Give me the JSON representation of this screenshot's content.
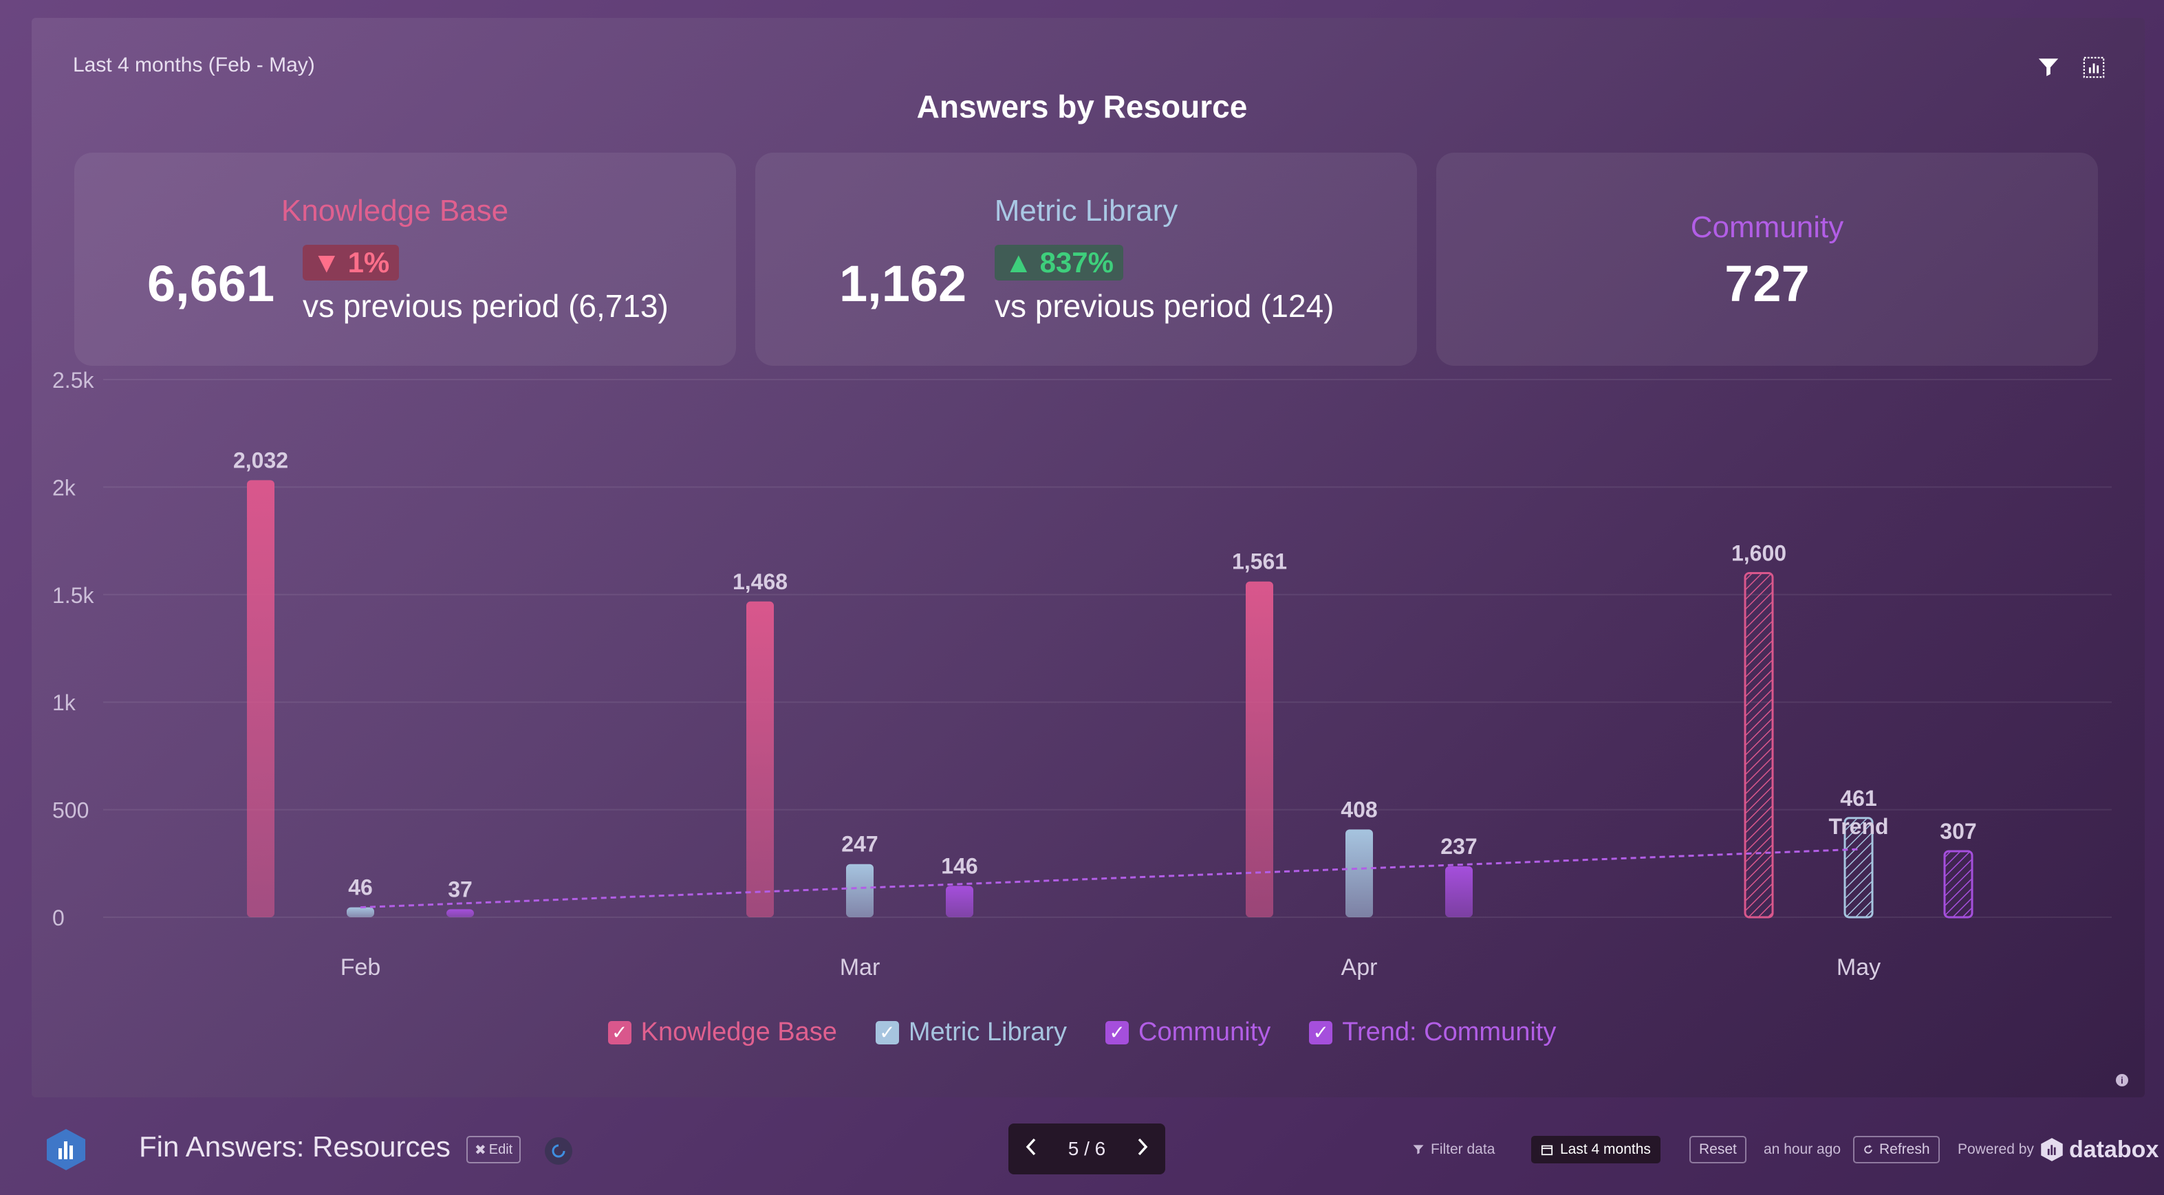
{
  "header": {
    "date_range": "Last 4 months (Feb - May)",
    "title": "Answers by Resource"
  },
  "kpis": [
    {
      "name": "Knowledge Base",
      "color": "#e0608f",
      "value": "6,661",
      "delta": "1%",
      "direction": "down",
      "compare": "vs previous period (6,713)"
    },
    {
      "name": "Metric Library",
      "color": "#a9c8e4",
      "value": "1,162",
      "delta": "837%",
      "direction": "up",
      "compare": "vs previous period (124)"
    },
    {
      "name": "Community",
      "color": "#b25ee6",
      "value": "727"
    }
  ],
  "chart_data": {
    "type": "bar",
    "categories": [
      "Feb",
      "Mar",
      "Apr",
      "May"
    ],
    "series": [
      {
        "name": "Knowledge Base",
        "color": "#d9578c",
        "values": [
          2032,
          1468,
          1561,
          1600
        ],
        "labels": [
          "2,032",
          "1,468",
          "1,561",
          "1,600"
        ]
      },
      {
        "name": "Metric Library",
        "color": "#a6c4df",
        "values": [
          46,
          247,
          408,
          461
        ],
        "labels": [
          "46",
          "247",
          "408",
          "461"
        ]
      },
      {
        "name": "Community",
        "color": "#a54fdc",
        "values": [
          37,
          146,
          237,
          307
        ],
        "labels": [
          "37",
          "146",
          "237",
          "307"
        ]
      }
    ],
    "trend": {
      "name": "Trend: Community",
      "label": "Trend",
      "color": "#b25ee6",
      "start": 46,
      "end": 316
    },
    "ylim": [
      0,
      2500
    ],
    "yticks": [
      0,
      500,
      1000,
      1500,
      2000,
      2500
    ],
    "ytick_labels": [
      "0",
      "500",
      "1k",
      "1.5k",
      "2k",
      "2.5k"
    ],
    "partial_period": "May",
    "grid": true,
    "legend_position": "bottom"
  },
  "legend": [
    {
      "label": "Knowledge Base",
      "color": "#d9578c"
    },
    {
      "label": "Metric Library",
      "color": "#a6c4df"
    },
    {
      "label": "Community",
      "color": "#a54fdc"
    },
    {
      "label": "Trend: Community",
      "color": "#a54fdc"
    }
  ],
  "footer": {
    "title": "Fin Answers: Resources",
    "edit_label": "Edit",
    "pager": "5 / 6",
    "filter_label": "Filter data",
    "range_label": "Last 4 months",
    "reset_label": "Reset",
    "updated": "an hour ago",
    "refresh_label": "Refresh",
    "powered_by": "Powered by",
    "brand": "databox"
  }
}
